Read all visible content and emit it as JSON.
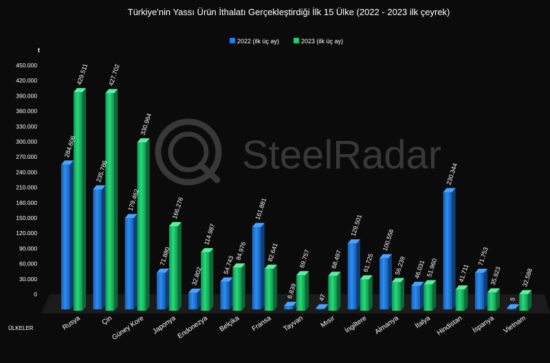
{
  "chart_data": {
    "type": "bar",
    "title": "Türkiye'nin Yassı Ürün İthalatı Gerçekleştirdiği İlk 15 Ülke (2022 - 2023 ilk çeyrek)",
    "ylabel": "t",
    "xlabel": "ÜLKELER",
    "ylim": [
      0,
      450000
    ],
    "yticks": [
      "450.000",
      "420.000",
      "390.000",
      "360.000",
      "330.000",
      "300.000",
      "270.000",
      "240.000",
      "210.000",
      "180.000",
      "150.000",
      "120.000",
      "90.000",
      "60.000",
      "30.000",
      "0"
    ],
    "ytick_values": [
      450000,
      420000,
      390000,
      360000,
      330000,
      300000,
      270000,
      240000,
      210000,
      180000,
      150000,
      120000,
      90000,
      60000,
      30000,
      0
    ],
    "legend_position": "top-center",
    "grid": false,
    "categories": [
      "Rusya",
      "Çin",
      "Güney Kore",
      "Japonya",
      "Endonezya",
      "Belçika",
      "Fransa",
      "Tayvan",
      "Mısır",
      "İngiltere",
      "Almanya",
      "İtalya",
      "Hindistan",
      "İspanya",
      "Vietnam"
    ],
    "series": [
      {
        "name": "2022 (ilk üç ay)",
        "color": "#1f7fe6",
        "values": [
          284606,
          235786,
          179462,
          71880,
          32802,
          54743,
          161881,
          6839,
          47,
          129501,
          100556,
          46031,
          230344,
          71753,
          5
        ],
        "labels": [
          "284.606",
          "235.786",
          "179.462",
          "71.880",
          "32.802",
          "54.743",
          "161.881",
          "6.839",
          "47",
          "129.501",
          "100.556",
          "46.031",
          "230.344",
          "71.753",
          "5"
        ]
      },
      {
        "name": "2023 (ilk üç ay)",
        "color": "#1fcf6e",
        "values": [
          429511,
          427702,
          330964,
          166276,
          114987,
          84976,
          82641,
          69757,
          68497,
          61725,
          56239,
          51960,
          41711,
          35923,
          32588
        ],
        "labels": [
          "429.511",
          "427.702",
          "330.964",
          "166.276",
          "114.987",
          "84.976",
          "82.641",
          "69.757",
          "68.497",
          "61.725",
          "56.239",
          "51.960",
          "41.711",
          "35.923",
          "32.588"
        ]
      }
    ]
  },
  "watermark": {
    "text": "SteelRadar"
  }
}
